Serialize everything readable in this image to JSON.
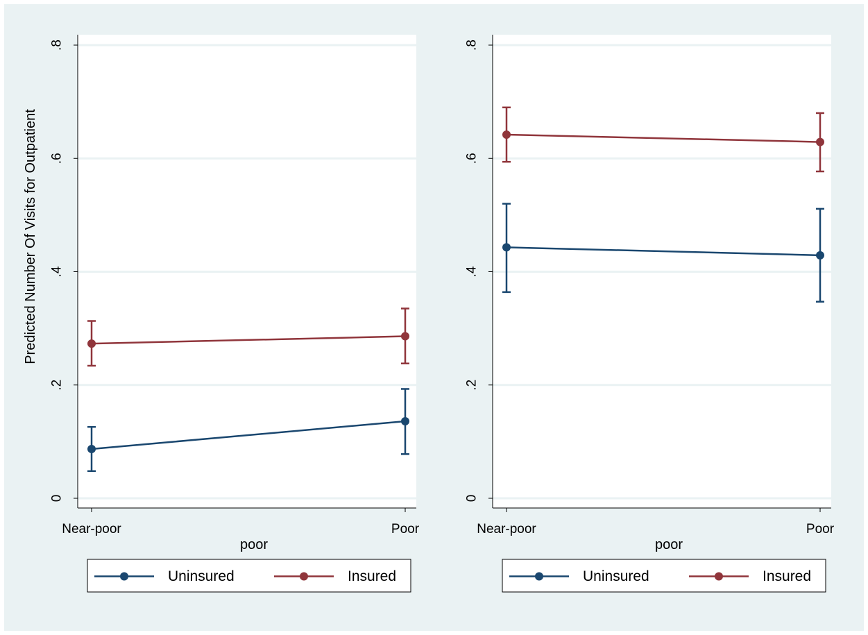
{
  "chart_data": [
    {
      "type": "line",
      "panel": "left",
      "x": [
        "Near-poor",
        "Poor"
      ],
      "xlabel": "poor",
      "ylabel": "Predicted Number Of Visits for Outpatient",
      "ylim": [
        0,
        0.8
      ],
      "yticks": [
        0,
        0.2,
        0.4,
        0.6,
        0.8
      ],
      "ytick_labels": [
        "0",
        ".2",
        ".4",
        ".6",
        ".8"
      ],
      "grid": true,
      "legend_position": "bottom",
      "series": [
        {
          "name": "Uninsured",
          "color": "#1a476f",
          "values": [
            0.087,
            0.136
          ],
          "ci_low": [
            0.048,
            0.078
          ],
          "ci_high": [
            0.126,
            0.193
          ]
        },
        {
          "name": "Insured",
          "color": "#90353b",
          "values": [
            0.273,
            0.286
          ],
          "ci_low": [
            0.234,
            0.238
          ],
          "ci_high": [
            0.313,
            0.335
          ]
        }
      ]
    },
    {
      "type": "line",
      "panel": "right",
      "x": [
        "Near-poor",
        "Poor"
      ],
      "xlabel": "poor",
      "ylabel": "",
      "ylim": [
        0,
        0.8
      ],
      "yticks": [
        0,
        0.2,
        0.4,
        0.6,
        0.8
      ],
      "ytick_labels": [
        "0",
        ".2",
        ".4",
        ".6",
        ".8"
      ],
      "grid": true,
      "legend_position": "bottom",
      "series": [
        {
          "name": "Uninsured",
          "color": "#1a476f",
          "values": [
            0.443,
            0.429
          ],
          "ci_low": [
            0.364,
            0.347
          ],
          "ci_high": [
            0.52,
            0.511
          ]
        },
        {
          "name": "Insured",
          "color": "#90353b",
          "values": [
            0.642,
            0.629
          ],
          "ci_low": [
            0.594,
            0.577
          ],
          "ci_high": [
            0.69,
            0.68
          ]
        }
      ]
    }
  ]
}
